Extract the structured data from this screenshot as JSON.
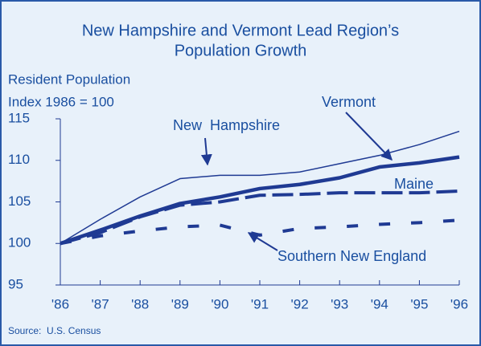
{
  "chart_data": {
    "type": "line",
    "title": "New Hampshire and Vermont Lead Region’s",
    "subtitle": "Population Growth",
    "y_label": "Resident Population",
    "y_label_2": "Index 1986 = 100",
    "source": "Source:  U.S. Census",
    "categories": [
      "'86",
      "'87",
      "'88",
      "'89",
      "'90",
      "'91",
      "'92",
      "'93",
      "'94",
      "'95",
      "'96"
    ],
    "ylim": [
      95,
      115
    ],
    "yticks": [
      95,
      100,
      105,
      110,
      115
    ],
    "series": [
      {
        "name": "New  Hampshire",
        "color": "#1f3a93",
        "line_style": "thin",
        "values": [
          100,
          102.9,
          105.6,
          107.8,
          108.2,
          108.2,
          108.6,
          109.6,
          110.6,
          111.9,
          113.5
        ]
      },
      {
        "name": "Vermont",
        "color": "#1f3a93",
        "line_style": "thick",
        "values": [
          100,
          101.6,
          103.3,
          104.8,
          105.6,
          106.6,
          107.1,
          107.9,
          109.2,
          109.7,
          110.4
        ]
      },
      {
        "name": "Maine",
        "color": "#1f3a93",
        "line_style": "dashed",
        "values": [
          100,
          101.3,
          103.2,
          104.6,
          105.0,
          105.8,
          105.9,
          106.1,
          106.1,
          106.1,
          106.3
        ]
      },
      {
        "name": "Southern New England",
        "color": "#1f3a93",
        "line_style": "dotted",
        "values": [
          100,
          100.9,
          101.5,
          102.0,
          102.2,
          101.0,
          101.8,
          102.0,
          102.3,
          102.5,
          102.8
        ]
      }
    ]
  }
}
